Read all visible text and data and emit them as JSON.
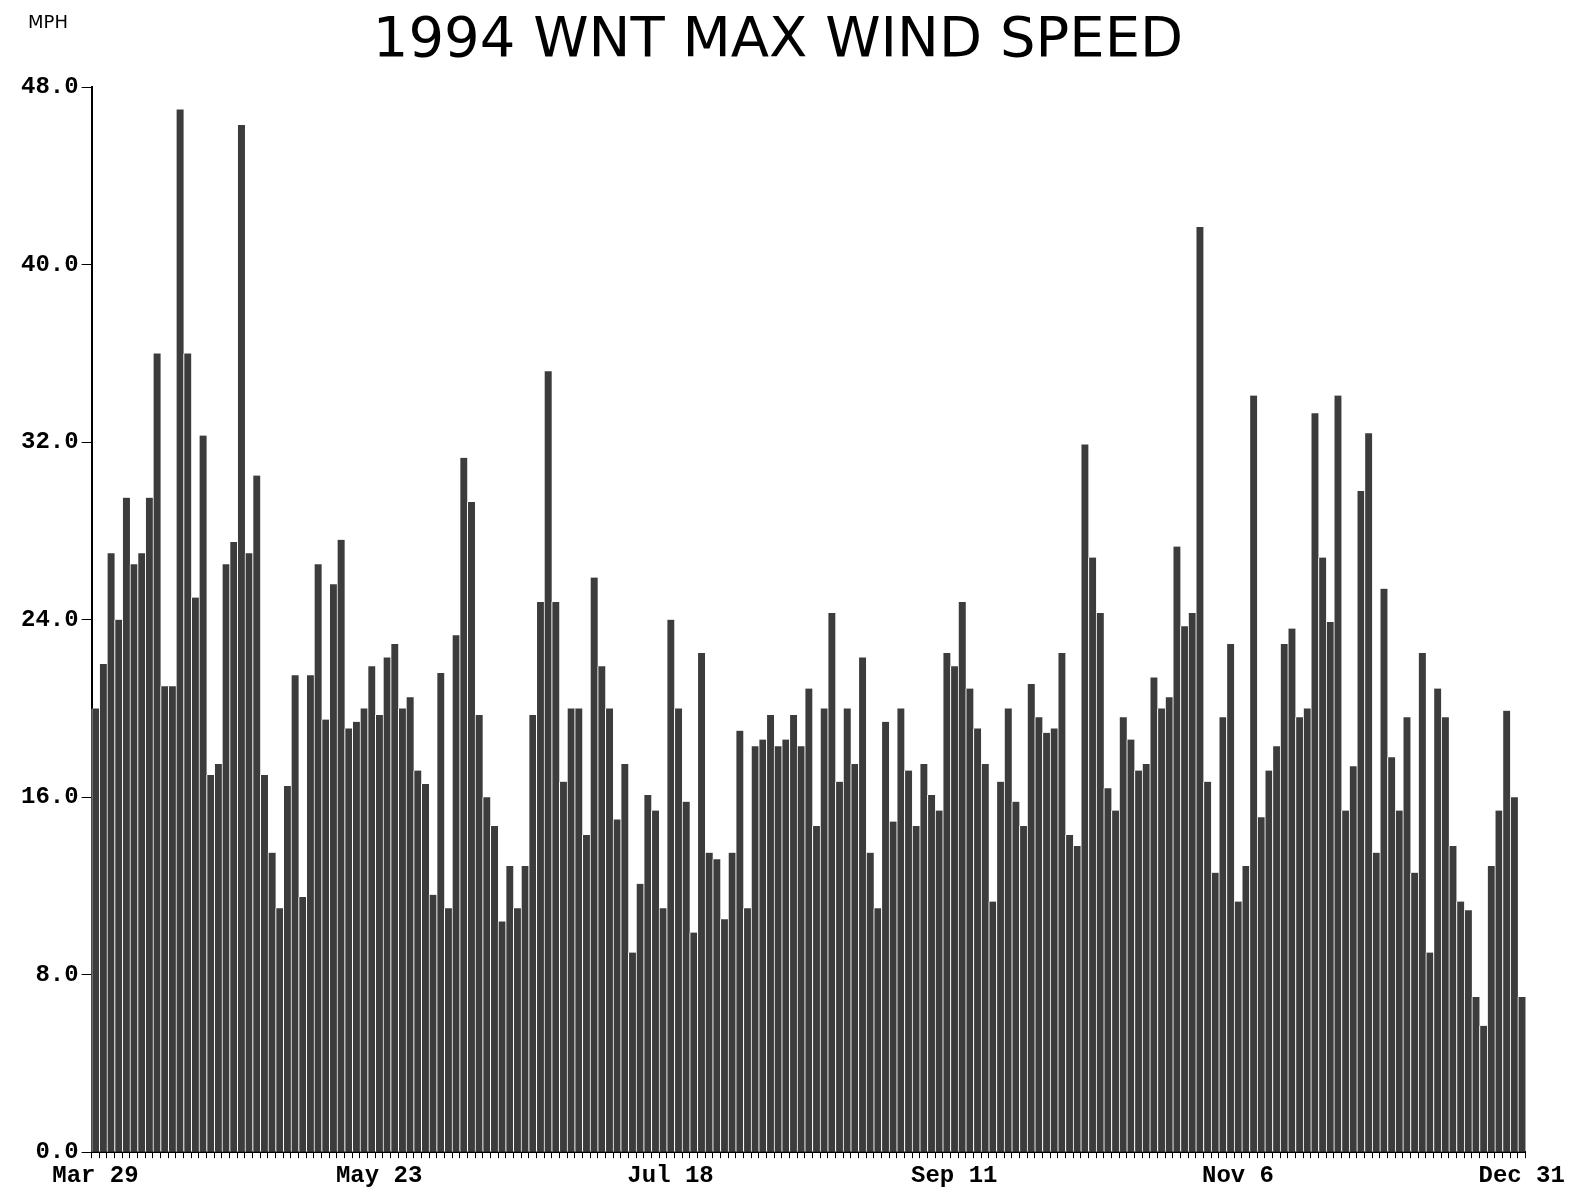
{
  "chart_data": {
    "type": "bar",
    "title": "1994 WNT MAX WIND SPEED",
    "ylabel": "MPH",
    "categories": [
      "Mar 29",
      null,
      null,
      null,
      null,
      null,
      null,
      null,
      null,
      null,
      null,
      null,
      null,
      null,
      null,
      null,
      null,
      null,
      null,
      null,
      null,
      null,
      null,
      null,
      null,
      null,
      null,
      null,
      null,
      null,
      null,
      null,
      null,
      null,
      null,
      null,
      null,
      "May 23",
      null,
      null,
      null,
      null,
      null,
      null,
      null,
      null,
      null,
      null,
      null,
      null,
      null,
      null,
      null,
      null,
      null,
      null,
      null,
      null,
      null,
      null,
      null,
      null,
      null,
      null,
      null,
      null,
      null,
      null,
      null,
      null,
      null,
      null,
      null,
      null,
      null,
      "Jul 18",
      null,
      null,
      null,
      null,
      null,
      null,
      null,
      null,
      null,
      null,
      null,
      null,
      null,
      null,
      null,
      null,
      null,
      null,
      null,
      null,
      null,
      null,
      null,
      null,
      null,
      null,
      null,
      null,
      null,
      null,
      null,
      null,
      null,
      null,
      null,
      null,
      "Sep 11",
      null,
      null,
      null,
      null,
      null,
      null,
      null,
      null,
      null,
      null,
      null,
      null,
      null,
      null,
      null,
      null,
      null,
      null,
      null,
      null,
      null,
      null,
      null,
      null,
      null,
      null,
      null,
      null,
      null,
      null,
      null,
      null,
      null,
      null,
      null,
      null,
      "Nov 6",
      null,
      null,
      null,
      null,
      null,
      null,
      null,
      null,
      null,
      null,
      null,
      null,
      null,
      null,
      null,
      null,
      null,
      null,
      null,
      null,
      null,
      null,
      null,
      null,
      null,
      null,
      null,
      null,
      null,
      null,
      null,
      null,
      null,
      null,
      null,
      null,
      "Dec 31"
    ],
    "values": [
      20,
      22,
      27,
      24,
      29.5,
      26.5,
      27,
      29.5,
      36,
      21,
      21,
      47,
      36,
      25,
      32.3,
      17,
      17.5,
      26.5,
      27.5,
      46.3,
      27,
      30.5,
      17,
      13.5,
      11,
      16.5,
      21.5,
      11.5,
      21.5,
      26.5,
      19.5,
      25.6,
      27.6,
      19.1,
      19.4,
      20,
      21.9,
      19.7,
      22.3,
      22.9,
      20,
      20.5,
      17.2,
      16.6,
      11.6,
      21.6,
      11,
      23.3,
      31.3,
      29.3,
      19.7,
      16,
      14.7,
      10.4,
      12.9,
      11,
      12.9,
      19.7,
      24.8,
      35.2,
      24.8,
      16.7,
      20,
      20,
      14.3,
      25.9,
      21.9,
      20,
      15,
      17.5,
      9,
      12.1,
      16.1,
      15.4,
      11,
      24,
      20,
      15.8,
      9.9,
      22.5,
      13.5,
      13.2,
      10.5,
      13.5,
      19,
      11,
      18.3,
      18.6,
      19.7,
      18.3,
      18.6,
      19.7,
      18.3,
      20.9,
      14.7,
      20,
      24.3,
      16.7,
      20,
      17.5,
      22.3,
      13.5,
      11,
      19.4,
      14.9,
      20,
      17.2,
      14.7,
      17.5,
      16.1,
      15.4,
      22.5,
      21.9,
      24.8,
      20.9,
      19.1,
      17.5,
      11.3,
      16.7,
      20,
      15.8,
      14.7,
      21.1,
      19.6,
      18.9,
      19.1,
      22.5,
      14.3,
      13.8,
      31.9,
      26.8,
      24.3,
      16.4,
      15.4,
      19.6,
      18.6,
      17.2,
      17.5,
      21.4,
      20,
      20.5,
      27.3,
      23.7,
      24.3,
      41.7,
      16.7,
      12.6,
      19.6,
      22.9,
      11.3,
      12.9,
      34.1,
      15.1,
      17.2,
      18.3,
      22.9,
      23.6,
      19.6,
      20,
      33.3,
      26.8,
      23.9,
      34.1,
      15.4,
      17.4,
      29.8,
      32.4,
      13.5,
      25.4,
      17.8,
      15.4,
      19.6,
      12.6,
      22.5,
      9,
      20.9,
      19.6,
      13.8,
      11.3,
      10.9,
      7,
      5.7,
      12.9,
      15.4,
      19.9,
      16,
      7
    ],
    "color": "#3c3c3c",
    "ylim": [
      0,
      48
    ],
    "yticks": [
      {
        "value": 0,
        "label": "0.0"
      },
      {
        "value": 8,
        "label": "8.0"
      },
      {
        "value": 16,
        "label": "16.0"
      },
      {
        "value": 24,
        "label": "24.0"
      },
      {
        "value": 32,
        "label": "32.0"
      },
      {
        "value": 40,
        "label": "40.0"
      },
      {
        "value": 48,
        "label": "48.0"
      }
    ],
    "grid": false,
    "legend": false
  }
}
